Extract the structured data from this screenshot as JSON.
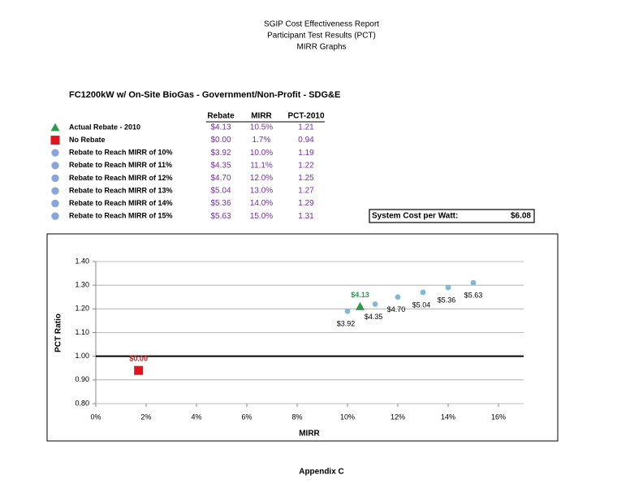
{
  "header": {
    "lines": [
      "SGIP Cost Effectiveness Report",
      "Participant Test Results (PCT)",
      "MIRR Graphs"
    ]
  },
  "section_title": "FC1200kW w/ On-Site BioGas - Government/Non-Profit - SDG&E",
  "table": {
    "columns": [
      "Rebate",
      "MIRR",
      "PCT-2010"
    ],
    "rows": [
      [
        "Actual Rebate - 2010",
        "$4.13",
        "10.5%",
        "1.21"
      ],
      [
        "No Rebate",
        "$0.00",
        "1.7%",
        "0.94"
      ],
      [
        "Rebate to Reach MIRR of 10%",
        "$3.92",
        "10.0%",
        "1.19"
      ],
      [
        "Rebate to Reach MIRR of 11%",
        "$4.35",
        "11.1%",
        "1.22"
      ],
      [
        "Rebate to Reach MIRR of 12%",
        "$4.70",
        "12.0%",
        "1.25"
      ],
      [
        "Rebate to Reach MIRR of 13%",
        "$5.04",
        "13.0%",
        "1.27"
      ],
      [
        "Rebate to Reach MIRR of 14%",
        "$5.36",
        "14.0%",
        "1.29"
      ],
      [
        "Rebate to Reach MIRR of 15%",
        "$5.63",
        "15.0%",
        "1.31"
      ]
    ]
  },
  "system_cost": {
    "label": "System Cost per Watt:",
    "value": "$6.08"
  },
  "chart_data": {
    "type": "scatter",
    "x_label": "MIRR",
    "y_label": "PCT Ratio",
    "xlim": [
      0,
      17
    ],
    "ylim": [
      0.8,
      1.4
    ],
    "xticks": [
      {
        "value": 0,
        "label": "0%"
      },
      {
        "value": 2,
        "label": "2%"
      },
      {
        "value": 4,
        "label": "4%"
      },
      {
        "value": 6,
        "label": "6%"
      },
      {
        "value": 8,
        "label": "8%"
      },
      {
        "value": 10,
        "label": "10%"
      },
      {
        "value": 12,
        "label": "12%"
      },
      {
        "value": 14,
        "label": "14%"
      },
      {
        "value": 16,
        "label": "16%"
      }
    ],
    "yticks": [
      {
        "value": 0.8,
        "label": "0.80"
      },
      {
        "value": 0.9,
        "label": "0.90"
      },
      {
        "value": 1.0,
        "label": "1.00"
      },
      {
        "value": 1.1,
        "label": "1.10"
      },
      {
        "value": 1.2,
        "label": "1.20"
      },
      {
        "value": 1.3,
        "label": "1.30"
      },
      {
        "value": 1.4,
        "label": "1.40"
      }
    ],
    "grid": true,
    "reference_line": 1.0,
    "series": [
      {
        "marker": "circle",
        "color": "#7fb9d6",
        "x": [
          10.0,
          11.1,
          12.0,
          13.0,
          14.0,
          15.0
        ],
        "values": [
          1.19,
          1.22,
          1.25,
          1.27,
          1.29,
          1.31
        ],
        "point_labels": [
          "$3.92",
          "$4.35",
          "$4.70",
          "$5.04",
          "$5.36",
          "$5.63"
        ]
      },
      {
        "marker": "triangle",
        "color": "#2e9a4b",
        "x": [
          10.5
        ],
        "values": [
          1.21
        ],
        "point_labels": [
          "$4.13"
        ]
      },
      {
        "marker": "square",
        "color": "#e0141e",
        "x": [
          1.7
        ],
        "values": [
          0.94
        ],
        "point_labels": [
          "$0.00"
        ]
      }
    ]
  },
  "footer": "Appendix C"
}
